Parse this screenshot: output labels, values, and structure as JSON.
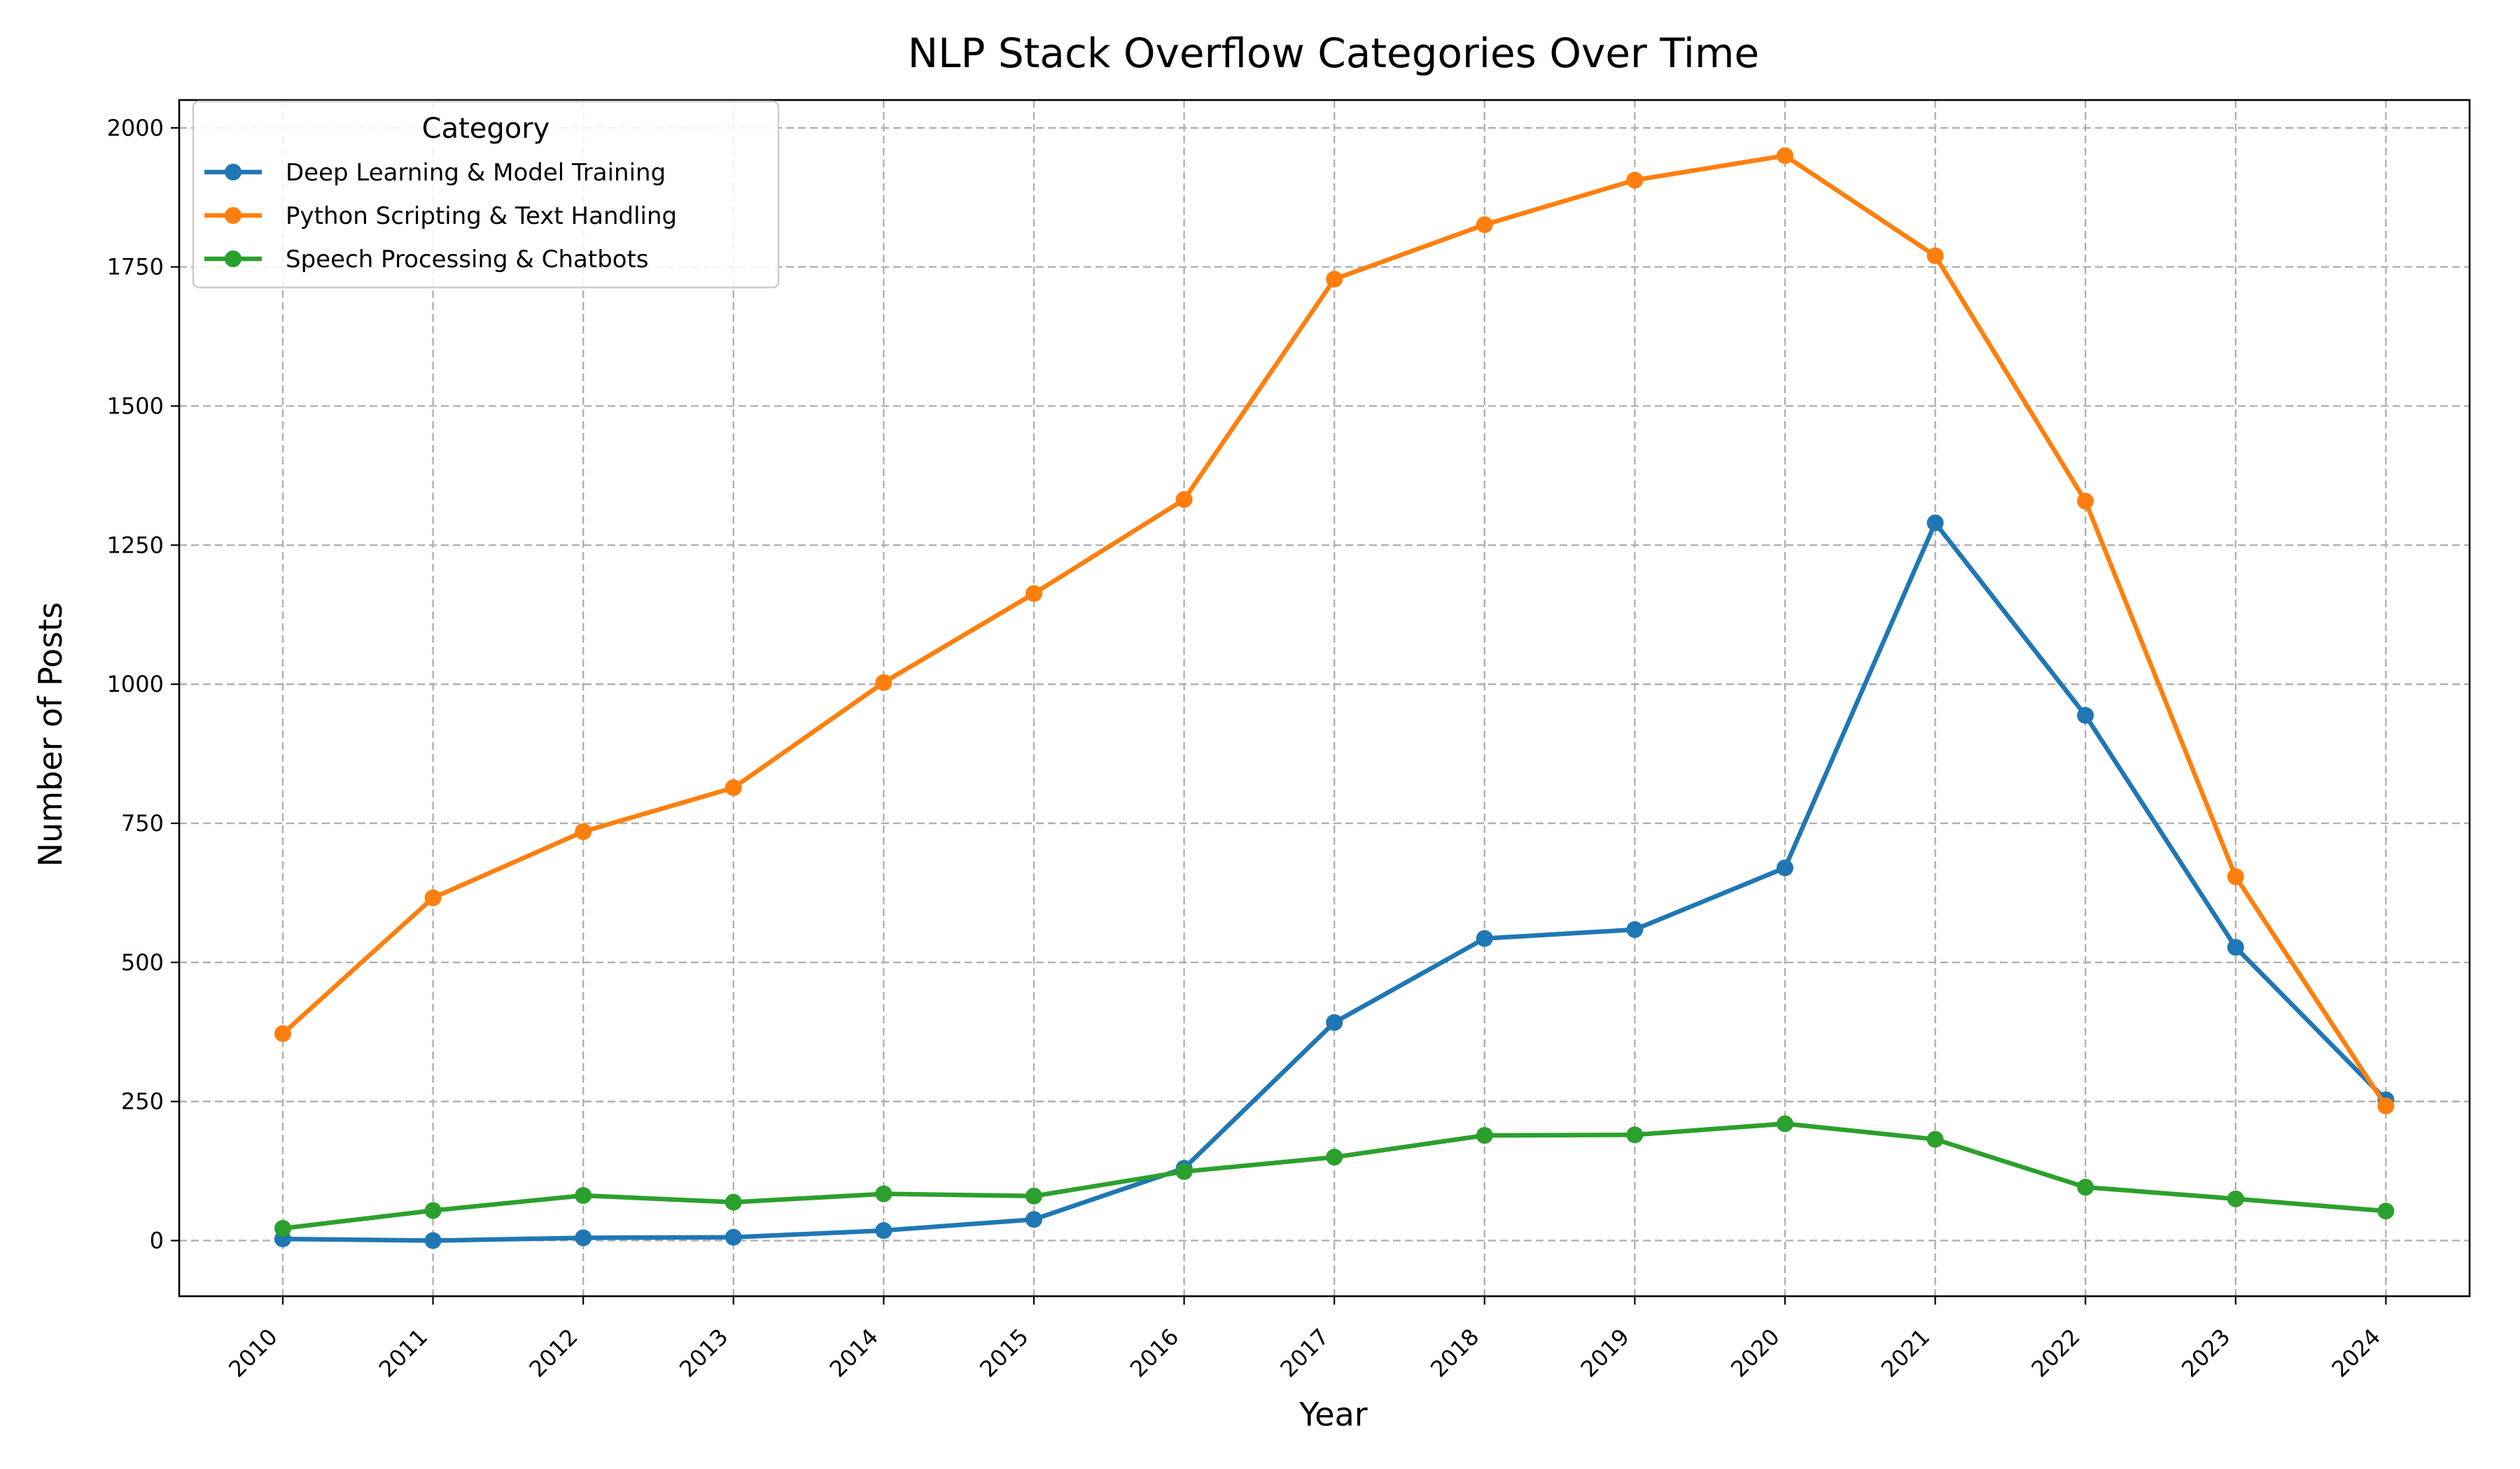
{
  "chart_data": {
    "type": "line",
    "title": "NLP Stack Overflow Categories Over Time",
    "xlabel": "Year",
    "ylabel": "Number of Posts",
    "x": [
      "2010",
      "2011",
      "2012",
      "2013",
      "2014",
      "2015",
      "2016",
      "2017",
      "2018",
      "2019",
      "2020",
      "2021",
      "2022",
      "2023",
      "2024"
    ],
    "ylim": [
      -100,
      2050
    ],
    "yticks": [
      0,
      250,
      500,
      750,
      1000,
      1250,
      1500,
      1750,
      2000
    ],
    "grid": true,
    "legend": {
      "title": "Category",
      "placement": "top-left"
    },
    "series": [
      {
        "name": "Deep Learning & Model Training",
        "color": "#1f77b4",
        "values": [
          3,
          0,
          5,
          6,
          18,
          38,
          130,
          392,
          543,
          559,
          670,
          1290,
          944,
          527,
          253
        ]
      },
      {
        "name": "Python Scripting & Text Handling",
        "color": "#ff7f0e",
        "values": [
          372,
          616,
          735,
          814,
          1003,
          1163,
          1332,
          1728,
          1826,
          1906,
          1950,
          1770,
          1329,
          654,
          242
        ]
      },
      {
        "name": "Speech Processing & Chatbots",
        "color": "#2ca02c",
        "values": [
          22,
          54,
          81,
          69,
          84,
          80,
          124,
          150,
          189,
          190,
          210,
          182,
          96,
          75,
          53
        ]
      }
    ]
  }
}
